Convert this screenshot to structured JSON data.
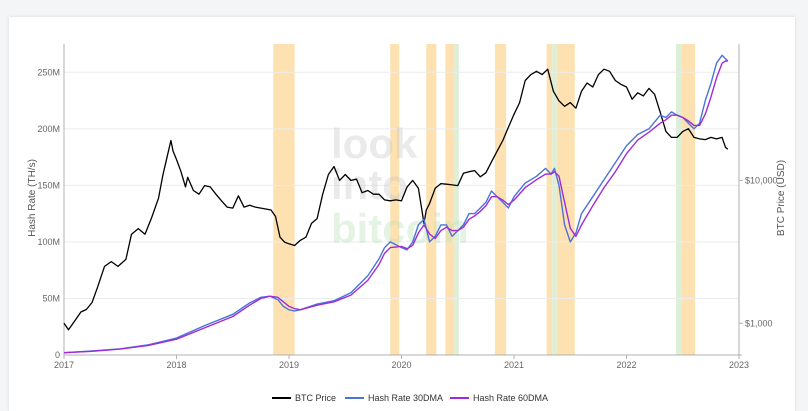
{
  "chart_data": {
    "type": "line",
    "title": "",
    "watermark": [
      "look",
      "into",
      "bitcoin"
    ],
    "x_axis": {
      "range": [
        2017.0,
        2023.0
      ],
      "ticks": [
        {
          "value": 2017,
          "label": "2017"
        },
        {
          "value": 2018,
          "label": "2018"
        },
        {
          "value": 2019,
          "label": "2019"
        },
        {
          "value": 2020,
          "label": "2020"
        },
        {
          "value": 2021,
          "label": "2021"
        },
        {
          "value": 2022,
          "label": "2022"
        },
        {
          "value": 2023,
          "label": "2023"
        }
      ]
    },
    "y_left": {
      "label": "Hash Rate (TH/s)",
      "range": [
        0,
        275
      ],
      "ticks": [
        {
          "value": 0,
          "label": "0"
        },
        {
          "value": 50,
          "label": "50M"
        },
        {
          "value": 100,
          "label": "100M"
        },
        {
          "value": 150,
          "label": "150M"
        },
        {
          "value": 200,
          "label": "200M"
        },
        {
          "value": 250,
          "label": "250M"
        }
      ]
    },
    "y_right": {
      "label": "BTC Price (USD)",
      "scale": "log",
      "range": [
        600,
        90000
      ],
      "ticks": [
        {
          "value": 1000,
          "label": "$1,000"
        },
        {
          "value": 10000,
          "label": "$10,000"
        }
      ]
    },
    "grid": true,
    "legend_position": "bottom",
    "colors": {
      "btc_price": "#000000",
      "hash_30dma": "#4a74d6",
      "hash_60dma": "#a12bd9",
      "band_orange": "#fde1b0",
      "band_green": "#dcefd9"
    },
    "series": [
      {
        "name": "BTC Price",
        "axis": "right",
        "x": [
          2017.0,
          2017.04,
          2017.1,
          2017.15,
          2017.2,
          2017.25,
          2017.3,
          2017.36,
          2017.42,
          2017.48,
          2017.55,
          2017.6,
          2017.66,
          2017.72,
          2017.78,
          2017.84,
          2017.88,
          2017.92,
          2017.95,
          2017.97,
          2018.0,
          2018.04,
          2018.08,
          2018.1,
          2018.15,
          2018.2,
          2018.25,
          2018.3,
          2018.35,
          2018.4,
          2018.45,
          2018.5,
          2018.55,
          2018.6,
          2018.65,
          2018.7,
          2018.75,
          2018.8,
          2018.84,
          2018.88,
          2018.92,
          2018.96,
          2019.0,
          2019.05,
          2019.1,
          2019.15,
          2019.2,
          2019.25,
          2019.3,
          2019.35,
          2019.4,
          2019.45,
          2019.5,
          2019.55,
          2019.6,
          2019.65,
          2019.7,
          2019.75,
          2019.8,
          2019.85,
          2019.9,
          2019.95,
          2020.0,
          2020.05,
          2020.1,
          2020.15,
          2020.2,
          2020.22,
          2020.25,
          2020.3,
          2020.35,
          2020.4,
          2020.45,
          2020.5,
          2020.55,
          2020.6,
          2020.65,
          2020.7,
          2020.75,
          2020.8,
          2020.85,
          2020.9,
          2020.95,
          2021.0,
          2021.05,
          2021.1,
          2021.15,
          2021.2,
          2021.25,
          2021.3,
          2021.35,
          2021.4,
          2021.45,
          2021.5,
          2021.55,
          2021.6,
          2021.65,
          2021.7,
          2021.75,
          2021.8,
          2021.85,
          2021.9,
          2021.95,
          2022.0,
          2022.05,
          2022.1,
          2022.15,
          2022.2,
          2022.25,
          2022.3,
          2022.35,
          2022.4,
          2022.45,
          2022.5,
          2022.55,
          2022.6,
          2022.65,
          2022.7,
          2022.75,
          2022.8,
          2022.85,
          2022.88,
          2022.9
        ],
        "values": [
          1000,
          900,
          1050,
          1200,
          1250,
          1400,
          1800,
          2500,
          2700,
          2500,
          2800,
          4200,
          4600,
          4200,
          5500,
          7500,
          11000,
          15000,
          19000,
          16000,
          14000,
          11500,
          9000,
          10500,
          8500,
          8000,
          9200,
          9000,
          8000,
          7200,
          6500,
          6400,
          7800,
          6500,
          6700,
          6500,
          6400,
          6300,
          6200,
          5600,
          4000,
          3700,
          3600,
          3500,
          3800,
          4000,
          5000,
          5400,
          8000,
          11000,
          12500,
          10000,
          11000,
          10000,
          10200,
          8200,
          8500,
          8000,
          8000,
          7300,
          7200,
          7300,
          7200,
          9000,
          10000,
          8800,
          5000,
          6200,
          6900,
          8800,
          9500,
          9400,
          9300,
          9200,
          11200,
          11500,
          11700,
          10600,
          11300,
          13500,
          16000,
          19000,
          23500,
          29000,
          35000,
          50000,
          55000,
          58000,
          55000,
          60000,
          42000,
          36000,
          33000,
          35000,
          32000,
          42000,
          48000,
          45000,
          55000,
          60000,
          58000,
          50000,
          47000,
          45000,
          37000,
          41000,
          39000,
          44000,
          40000,
          30000,
          22000,
          20000,
          20000,
          22000,
          23000,
          20000,
          19500,
          19300,
          20000,
          19500,
          20000,
          17000,
          16500
        ]
      },
      {
        "name": "Hash Rate 30DMA",
        "axis": "left",
        "x": [
          2017.0,
          2017.25,
          2017.5,
          2017.75,
          2018.0,
          2018.25,
          2018.5,
          2018.65,
          2018.75,
          2018.83,
          2018.9,
          2018.95,
          2019.0,
          2019.05,
          2019.1,
          2019.25,
          2019.4,
          2019.55,
          2019.7,
          2019.8,
          2019.85,
          2019.9,
          2020.0,
          2020.05,
          2020.1,
          2020.15,
          2020.2,
          2020.25,
          2020.3,
          2020.35,
          2020.4,
          2020.45,
          2020.5,
          2020.55,
          2020.6,
          2020.65,
          2020.7,
          2020.75,
          2020.8,
          2020.85,
          2020.9,
          2020.95,
          2021.0,
          2021.1,
          2021.2,
          2021.28,
          2021.33,
          2021.36,
          2021.4,
          2021.45,
          2021.5,
          2021.55,
          2021.6,
          2021.7,
          2021.8,
          2021.9,
          2022.0,
          2022.1,
          2022.2,
          2022.3,
          2022.35,
          2022.4,
          2022.45,
          2022.5,
          2022.55,
          2022.6,
          2022.65,
          2022.7,
          2022.75,
          2022.8,
          2022.85,
          2022.88,
          2022.9
        ],
        "values": [
          2,
          3.5,
          5.5,
          9,
          15,
          26,
          36,
          46,
          51,
          52,
          49,
          43,
          40,
          39,
          40,
          45,
          48,
          55,
          70,
          85,
          95,
          100,
          95,
          93,
          100,
          115,
          120,
          100,
          105,
          115,
          115,
          105,
          110,
          115,
          125,
          125,
          130,
          135,
          145,
          140,
          135,
          130,
          140,
          152,
          158,
          165,
          160,
          165,
          150,
          115,
          100,
          108,
          125,
          140,
          155,
          170,
          185,
          195,
          200,
          212,
          210,
          215,
          212,
          210,
          205,
          200,
          205,
          225,
          240,
          258,
          265,
          262,
          260
        ]
      },
      {
        "name": "Hash Rate 60DMA",
        "axis": "left",
        "x": [
          2017.0,
          2017.25,
          2017.5,
          2017.75,
          2018.0,
          2018.25,
          2018.5,
          2018.65,
          2018.75,
          2018.83,
          2018.9,
          2018.95,
          2019.0,
          2019.05,
          2019.1,
          2019.25,
          2019.4,
          2019.55,
          2019.7,
          2019.8,
          2019.85,
          2019.9,
          2020.0,
          2020.05,
          2020.1,
          2020.15,
          2020.2,
          2020.25,
          2020.3,
          2020.35,
          2020.4,
          2020.45,
          2020.5,
          2020.55,
          2020.6,
          2020.65,
          2020.7,
          2020.75,
          2020.8,
          2020.85,
          2020.9,
          2020.95,
          2021.0,
          2021.1,
          2021.2,
          2021.28,
          2021.33,
          2021.36,
          2021.4,
          2021.45,
          2021.5,
          2021.55,
          2021.6,
          2021.7,
          2021.8,
          2021.9,
          2022.0,
          2022.1,
          2022.2,
          2022.3,
          2022.35,
          2022.4,
          2022.45,
          2022.5,
          2022.55,
          2022.6,
          2022.65,
          2022.7,
          2022.75,
          2022.8,
          2022.85,
          2022.88,
          2022.9
        ],
        "values": [
          2,
          3.3,
          5.2,
          8.5,
          14,
          24,
          34,
          44,
          50,
          52,
          51,
          47,
          43,
          41,
          40,
          44,
          47,
          53,
          66,
          80,
          90,
          95,
          96,
          94,
          97,
          108,
          115,
          107,
          103,
          110,
          113,
          110,
          110,
          113,
          120,
          123,
          127,
          132,
          140,
          140,
          137,
          133,
          137,
          148,
          155,
          160,
          160,
          162,
          158,
          135,
          112,
          105,
          115,
          132,
          148,
          162,
          178,
          190,
          197,
          205,
          208,
          212,
          212,
          210,
          207,
          203,
          203,
          213,
          228,
          245,
          258,
          260,
          260
        ]
      }
    ],
    "bands": [
      {
        "start": 2018.86,
        "end": 2019.05,
        "color": "orange"
      },
      {
        "start": 2019.9,
        "end": 2019.98,
        "color": "orange"
      },
      {
        "start": 2020.22,
        "end": 2020.31,
        "color": "orange"
      },
      {
        "start": 2020.39,
        "end": 2020.47,
        "color": "orange"
      },
      {
        "start": 2020.47,
        "end": 2020.51,
        "color": "green"
      },
      {
        "start": 2020.83,
        "end": 2020.93,
        "color": "orange"
      },
      {
        "start": 2021.29,
        "end": 2021.34,
        "color": "orange"
      },
      {
        "start": 2021.34,
        "end": 2021.38,
        "color": "green"
      },
      {
        "start": 2021.38,
        "end": 2021.54,
        "color": "orange"
      },
      {
        "start": 2022.44,
        "end": 2022.49,
        "color": "green"
      },
      {
        "start": 2022.49,
        "end": 2022.61,
        "color": "orange"
      }
    ]
  }
}
